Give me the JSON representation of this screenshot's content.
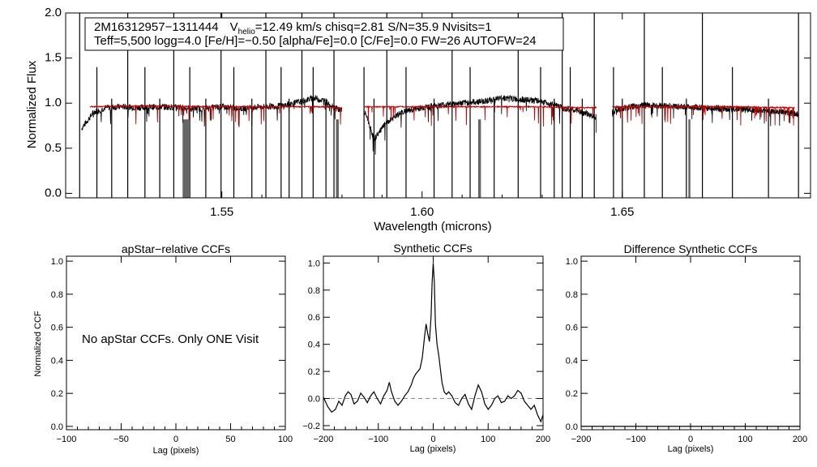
{
  "chart_data": [
    {
      "type": "line",
      "id": "spectrum",
      "xlabel": "Wavelength (microns)",
      "ylabel": "Normalized Flux",
      "xlim": [
        1.511,
        1.697
      ],
      "ylim": [
        -0.05,
        2.0
      ],
      "x_ticks": [
        "1.55",
        "1.60",
        "1.65"
      ],
      "x_tick_values": [
        1.55,
        1.6,
        1.65
      ],
      "y_ticks": [
        "0.0",
        "0.5",
        "1.0",
        "1.5",
        "2.0"
      ],
      "y_tick_values": [
        0.0,
        0.5,
        1.0,
        1.5,
        2.0
      ],
      "info_box": {
        "star_id": "2M16312957−1311444",
        "v_symbol": "V",
        "v_sub": "helio",
        "line1_rest": "=12.49 km/s  chisq=2.81  S/N=35.9  Nvisits=1",
        "line2": "Teff=5,500 logg=4.0 [Fe/H]=−0.50 [alpha/Fe]=0.0 [C/Fe]=0.0 FW=26 AUTOFW=24"
      },
      "chips": [
        [
          1.5145,
          1.58
        ],
        [
          1.5855,
          1.6435
        ],
        [
          1.6475,
          1.6945
        ]
      ],
      "colors": {
        "observed": "#000000",
        "model": "#cc0000",
        "masked": "#666666"
      },
      "series": [
        {
          "color": "#000000",
          "points": [
            [
              1.515,
              0.72
            ],
            [
              1.518,
              0.9
            ],
            [
              1.521,
              0.95
            ],
            [
              1.525,
              0.96
            ],
            [
              1.53,
              0.95
            ],
            [
              1.535,
              0.96
            ],
            [
              1.54,
              0.95
            ],
            [
              1.545,
              0.94
            ],
            [
              1.55,
              0.96
            ],
            [
              1.555,
              0.94
            ],
            [
              1.56,
              0.96
            ],
            [
              1.565,
              0.97
            ],
            [
              1.57,
              1.02
            ],
            [
              1.573,
              1.06
            ],
            [
              1.576,
              1.02
            ],
            [
              1.579,
              0.93
            ],
            [
              1.586,
              0.88
            ],
            [
              1.588,
              0.6
            ],
            [
              1.591,
              0.78
            ],
            [
              1.595,
              0.9
            ],
            [
              1.6,
              0.95
            ],
            [
              1.605,
              0.98
            ],
            [
              1.61,
              1.0
            ],
            [
              1.615,
              1.02
            ],
            [
              1.62,
              1.06
            ],
            [
              1.625,
              1.04
            ],
            [
              1.63,
              1.02
            ],
            [
              1.635,
              0.95
            ],
            [
              1.64,
              0.9
            ],
            [
              1.643,
              0.85
            ],
            [
              1.648,
              0.92
            ],
            [
              1.652,
              0.96
            ],
            [
              1.656,
              0.98
            ],
            [
              1.66,
              0.97
            ],
            [
              1.665,
              0.96
            ],
            [
              1.67,
              0.95
            ],
            [
              1.675,
              0.94
            ],
            [
              1.68,
              0.93
            ],
            [
              1.685,
              0.92
            ],
            [
              1.69,
              0.9
            ],
            [
              1.694,
              0.88
            ]
          ]
        },
        {
          "color": "#cc0000",
          "points": [
            [
              1.517,
              0.96
            ],
            [
              1.53,
              0.97
            ],
            [
              1.545,
              0.96
            ],
            [
              1.56,
              0.96
            ],
            [
              1.575,
              0.96
            ],
            [
              1.579,
              0.95
            ],
            [
              1.587,
              0.96
            ],
            [
              1.6,
              0.96
            ],
            [
              1.615,
              0.96
            ],
            [
              1.63,
              0.96
            ],
            [
              1.642,
              0.95
            ],
            [
              1.649,
              0.96
            ],
            [
              1.66,
              0.96
            ],
            [
              1.675,
              0.96
            ],
            [
              1.693,
              0.95
            ]
          ]
        }
      ],
      "masked_regions": [
        [
          1.5402,
          1.5418
        ],
        [
          1.5785,
          1.5792
        ],
        [
          1.614,
          1.6147
        ],
        [
          1.6665,
          1.667
        ]
      ],
      "bad_pixel_spikes": [
        1.5145,
        1.5188,
        1.5225,
        1.5265,
        1.5308,
        1.5345,
        1.538,
        1.542,
        1.546,
        1.5498,
        1.553,
        1.5575,
        1.561,
        1.5648,
        1.5668,
        1.57,
        1.5728,
        1.576,
        1.578,
        1.5855,
        1.588,
        1.5912,
        1.596,
        1.603,
        1.6075,
        1.612,
        1.618,
        1.624,
        1.6296,
        1.633,
        1.635,
        1.637,
        1.64,
        1.643,
        1.6478,
        1.65,
        1.6555,
        1.66,
        1.666,
        1.67,
        1.6775,
        1.6865,
        1.694
      ]
    },
    {
      "type": "line",
      "id": "apstar-ccf",
      "title": "apStar−relative CCFs",
      "xlabel": "Lag (pixels)",
      "ylabel": "Normalized CCF",
      "xlim": [
        -100,
        100
      ],
      "ylim": [
        -0.02,
        1.03
      ],
      "x_ticks": [
        "−100",
        "−50",
        "0",
        "50",
        "100"
      ],
      "x_tick_values": [
        -100,
        -50,
        0,
        50,
        100
      ],
      "y_ticks": [
        "0.0",
        "0.2",
        "0.4",
        "0.6",
        "0.8",
        "1.0"
      ],
      "y_tick_values": [
        0.0,
        0.2,
        0.4,
        0.6,
        0.8,
        1.0
      ],
      "message": "No apStar CCFs.  Only ONE Visit",
      "series": []
    },
    {
      "type": "line",
      "id": "synthetic-ccf",
      "title": "Synthetic CCFs",
      "xlabel": "Lag (pixels)",
      "xlim": [
        -200,
        200
      ],
      "ylim": [
        -0.23,
        1.05
      ],
      "x_ticks": [
        "−200",
        "−100",
        "0",
        "100",
        "200"
      ],
      "x_tick_values": [
        -200,
        -100,
        0,
        100,
        200
      ],
      "y_ticks": [
        "−0.2",
        "0.0",
        "0.2",
        "0.4",
        "0.6",
        "0.8",
        "1.0"
      ],
      "y_tick_values": [
        -0.2,
        0.0,
        0.2,
        0.4,
        0.6,
        0.8,
        1.0
      ],
      "zero_line": 0.0,
      "series": [
        {
          "color": "#000000",
          "points": [
            [
              -200,
              0.01
            ],
            [
              -192,
              -0.06
            ],
            [
              -185,
              -0.1
            ],
            [
              -178,
              -0.08
            ],
            [
              -172,
              -0.02
            ],
            [
              -166,
              -0.05
            ],
            [
              -160,
              0.02
            ],
            [
              -155,
              0.05
            ],
            [
              -150,
              0.03
            ],
            [
              -144,
              -0.04
            ],
            [
              -138,
              -0.02
            ],
            [
              -132,
              0.04
            ],
            [
              -126,
              0.01
            ],
            [
              -120,
              -0.03
            ],
            [
              -114,
              0.02
            ],
            [
              -108,
              0.05
            ],
            [
              -102,
              0.0
            ],
            [
              -96,
              -0.04
            ],
            [
              -90,
              0.02
            ],
            [
              -84,
              0.06
            ],
            [
              -80,
              0.12
            ],
            [
              -76,
              0.05
            ],
            [
              -70,
              -0.02
            ],
            [
              -64,
              -0.05
            ],
            [
              -58,
              -0.02
            ],
            [
              -52,
              0.02
            ],
            [
              -46,
              0.05
            ],
            [
              -40,
              0.1
            ],
            [
              -36,
              0.15
            ],
            [
              -32,
              0.18
            ],
            [
              -28,
              0.2
            ],
            [
              -24,
              0.22
            ],
            [
              -20,
              0.3
            ],
            [
              -16,
              0.45
            ],
            [
              -13,
              0.55
            ],
            [
              -10,
              0.48
            ],
            [
              -7,
              0.42
            ],
            [
              -4,
              0.6
            ],
            [
              -2,
              0.85
            ],
            [
              0,
              1.0
            ],
            [
              2,
              0.85
            ],
            [
              4,
              0.55
            ],
            [
              7,
              0.4
            ],
            [
              10,
              0.32
            ],
            [
              13,
              0.22
            ],
            [
              16,
              0.12
            ],
            [
              20,
              0.05
            ],
            [
              24,
              0.03
            ],
            [
              28,
              0.05
            ],
            [
              34,
              0.02
            ],
            [
              40,
              -0.03
            ],
            [
              46,
              -0.05
            ],
            [
              52,
              0.0
            ],
            [
              58,
              0.03
            ],
            [
              64,
              -0.04
            ],
            [
              70,
              -0.08
            ],
            [
              76,
              0.02
            ],
            [
              82,
              0.1
            ],
            [
              88,
              0.05
            ],
            [
              94,
              -0.04
            ],
            [
              100,
              -0.08
            ],
            [
              106,
              -0.05
            ],
            [
              112,
              0.0
            ],
            [
              118,
              0.02
            ],
            [
              124,
              -0.03
            ],
            [
              130,
              -0.02
            ],
            [
              136,
              0.02
            ],
            [
              142,
              0.0
            ],
            [
              148,
              0.02
            ],
            [
              154,
              0.06
            ],
            [
              160,
              0.04
            ],
            [
              166,
              -0.02
            ],
            [
              172,
              -0.05
            ],
            [
              178,
              -0.08
            ],
            [
              184,
              -0.05
            ],
            [
              190,
              -0.12
            ],
            [
              196,
              -0.17
            ],
            [
              200,
              -0.12
            ]
          ]
        }
      ]
    },
    {
      "type": "line",
      "id": "difference-ccf",
      "title": "Difference Synthetic CCFs",
      "xlabel": "Lag (pixels)",
      "xlim": [
        -200,
        200
      ],
      "ylim": [
        -0.02,
        1.03
      ],
      "x_ticks": [
        "−200",
        "−100",
        "0",
        "100",
        "200"
      ],
      "x_tick_values": [
        -200,
        -100,
        0,
        100,
        200
      ],
      "y_ticks": [
        "0.0",
        "0.2",
        "0.4",
        "0.6",
        "0.8",
        "1.0"
      ],
      "y_tick_values": [
        0.0,
        0.2,
        0.4,
        0.6,
        0.8,
        1.0
      ],
      "series": [
        {
          "color": "#000000",
          "points": [
            [
              -200,
              0.0
            ],
            [
              200,
              0.0
            ]
          ]
        }
      ]
    }
  ]
}
